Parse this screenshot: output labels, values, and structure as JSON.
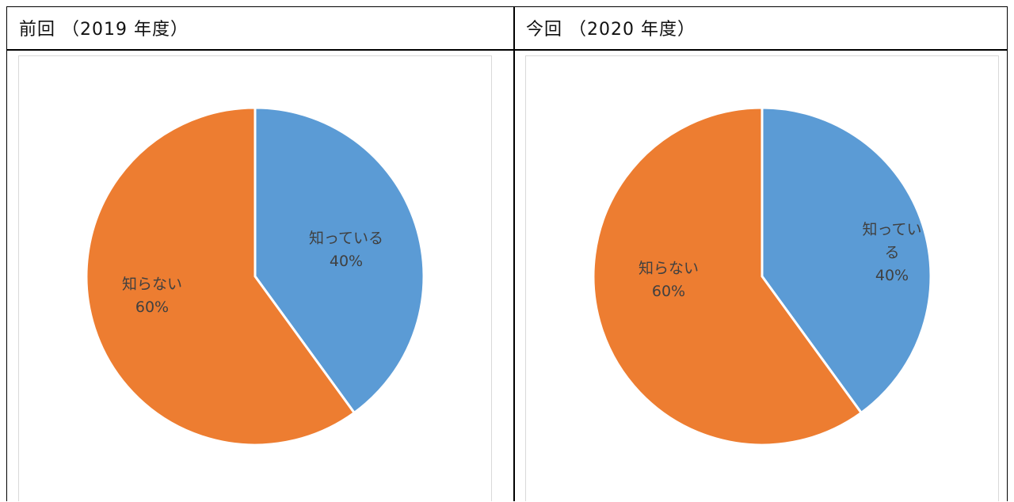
{
  "headers": {
    "left": "前回 （2019 年度）",
    "right": "今回 （2020 年度）"
  },
  "colors": {
    "known": "#5b9bd5",
    "unknown": "#ed7d31",
    "border": "#d9d9d9"
  },
  "chart_data": [
    {
      "type": "pie",
      "categories": [
        "知っている",
        "知らない"
      ],
      "values": [
        40,
        60
      ],
      "value_labels": [
        "40%",
        "60%"
      ],
      "start_angle_deg": 0,
      "direction": "clockwise"
    },
    {
      "type": "pie",
      "categories": [
        "知ってい\nる",
        "知らない"
      ],
      "values": [
        40,
        60
      ],
      "value_labels": [
        "40%",
        "60%"
      ],
      "start_angle_deg": 0,
      "direction": "clockwise"
    }
  ]
}
